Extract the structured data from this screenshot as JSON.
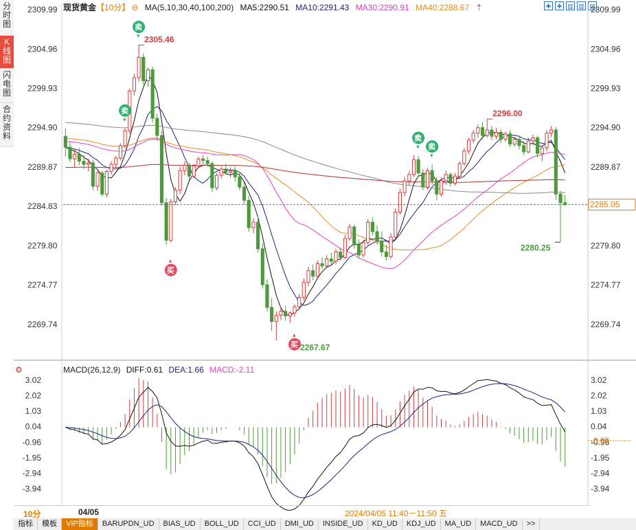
{
  "side_tabs": [
    {
      "label": "分时图",
      "active": false
    },
    {
      "label": "K线图",
      "active": true
    },
    {
      "label": "闪电图",
      "active": false
    },
    {
      "label": "合约资料",
      "active": false
    }
  ],
  "header": {
    "instrument": "现货黄金",
    "period_tag": "【10分】",
    "ma_label": "MA(5,10,30,40,100,200)",
    "ma5": "MA5:2290.51",
    "ma10": "MA10:2291.43",
    "ma30": "MA30:2290.91",
    "ma40": "MA40:2288.67"
  },
  "tool_icons": [
    "zoom-in-icon",
    "zoom-out-icon",
    "pan-left-icon",
    "pan-right-icon",
    "fullscreen-icon"
  ],
  "colors": {
    "up": "#d23c3c",
    "down": "#4c9a3c",
    "ma5": "#111111",
    "ma10": "#1a237e",
    "ma30": "#e040c0",
    "ma40": "#e88a1a",
    "ma100": "#888888",
    "ma200": "#b03030",
    "accent": "#e07b00",
    "last_price": "#e07b00",
    "buy": "#e84a5f",
    "sell": "#2fae70"
  },
  "chart_data": [
    {
      "type": "candlestick",
      "title": "现货黄金 10分",
      "y_ticks": [
        2309.99,
        2304.96,
        2299.93,
        2294.9,
        2289.87,
        2284.83,
        2279.8,
        2274.77,
        2269.74
      ],
      "ylim": [
        2265.5,
        2310.7
      ],
      "last_price": 2285.05,
      "last_price_label": "2285.05",
      "high_annotation": {
        "value": 2305.46,
        "label": "2305.46",
        "index": 16
      },
      "high2_annotation": {
        "value": 2296.0,
        "label": "2296.00",
        "index": 92
      },
      "low_annotation": {
        "value": 2267.67,
        "label": "2267.67",
        "index": 50
      },
      "low2_annotation": {
        "value": 2280.25,
        "label": "2280.25",
        "index": 108
      },
      "signals": [
        {
          "type": "sell",
          "label": "卖",
          "index": 16
        },
        {
          "type": "sell",
          "label": "卖",
          "index": 13
        },
        {
          "type": "buy",
          "label": "买",
          "index": 23
        },
        {
          "type": "buy",
          "label": "买",
          "index": 50
        },
        {
          "type": "sell",
          "label": "卖",
          "index": 80
        },
        {
          "type": "sell",
          "label": "卖",
          "index": 77
        }
      ],
      "candles": [
        [
          2293.8,
          2294.8,
          2291.2,
          2292.4
        ],
        [
          2292.4,
          2293.2,
          2290.5,
          2290.9
        ],
        [
          2290.9,
          2292.1,
          2289.8,
          2291.5
        ],
        [
          2291.5,
          2292.3,
          2290.1,
          2290.6
        ],
        [
          2290.6,
          2291.4,
          2289.6,
          2290.2
        ],
        [
          2290.2,
          2290.9,
          2289.3,
          2290.4
        ],
        [
          2290.4,
          2290.8,
          2286.9,
          2287.4
        ],
        [
          2287.4,
          2289.6,
          2286.8,
          2289.1
        ],
        [
          2289.1,
          2289.4,
          2286.1,
          2286.4
        ],
        [
          2286.4,
          2289.5,
          2286.0,
          2289.3
        ],
        [
          2289.3,
          2290.6,
          2288.9,
          2290.2
        ],
        [
          2290.2,
          2291.3,
          2289.8,
          2291.0
        ],
        [
          2291.0,
          2292.9,
          2290.7,
          2292.6
        ],
        [
          2292.6,
          2294.8,
          2292.2,
          2294.5
        ],
        [
          2294.5,
          2299.9,
          2294.1,
          2299.6
        ],
        [
          2299.6,
          2301.8,
          2299.0,
          2301.3
        ],
        [
          2301.3,
          2305.5,
          2300.8,
          2303.9
        ],
        [
          2303.9,
          2304.4,
          2300.4,
          2300.9
        ],
        [
          2300.9,
          2302.6,
          2300.1,
          2302.3
        ],
        [
          2302.3,
          2302.7,
          2295.6,
          2296.1
        ],
        [
          2296.1,
          2296.7,
          2293.2,
          2293.9
        ],
        [
          2293.9,
          2294.5,
          2284.9,
          2285.3
        ],
        [
          2285.3,
          2285.9,
          2279.9,
          2280.5
        ],
        [
          2280.5,
          2285.8,
          2280.2,
          2285.4
        ],
        [
          2285.4,
          2287.3,
          2285.0,
          2286.9
        ],
        [
          2286.9,
          2289.9,
          2286.4,
          2289.4
        ],
        [
          2289.4,
          2290.6,
          2288.8,
          2290.1
        ],
        [
          2290.1,
          2290.4,
          2288.2,
          2288.7
        ],
        [
          2288.7,
          2290.3,
          2288.4,
          2290.0
        ],
        [
          2290.0,
          2291.2,
          2289.7,
          2290.9
        ],
        [
          2290.9,
          2291.4,
          2290.2,
          2290.7
        ],
        [
          2290.7,
          2291.2,
          2289.9,
          2290.3
        ],
        [
          2290.3,
          2290.6,
          2286.7,
          2287.2
        ],
        [
          2287.2,
          2289.1,
          2286.9,
          2288.8
        ],
        [
          2288.8,
          2289.9,
          2288.4,
          2289.6
        ],
        [
          2289.6,
          2290.3,
          2288.9,
          2289.2
        ],
        [
          2289.2,
          2289.8,
          2288.5,
          2289.4
        ],
        [
          2289.4,
          2289.9,
          2288.0,
          2288.6
        ],
        [
          2288.6,
          2289.2,
          2286.9,
          2287.3
        ],
        [
          2287.3,
          2287.9,
          2285.1,
          2285.6
        ],
        [
          2285.6,
          2286.2,
          2281.6,
          2282.1
        ],
        [
          2282.1,
          2283.3,
          2281.4,
          2282.8
        ],
        [
          2282.8,
          2283.6,
          2278.9,
          2279.4
        ],
        [
          2279.4,
          2280.1,
          2274.3,
          2274.8
        ],
        [
          2274.8,
          2275.5,
          2271.4,
          2271.9
        ],
        [
          2271.9,
          2273.1,
          2268.9,
          2270.1
        ],
        [
          2270.1,
          2271.4,
          2267.7,
          2270.9
        ],
        [
          2270.9,
          2271.8,
          2270.3,
          2271.4
        ],
        [
          2271.4,
          2272.1,
          2270.2,
          2270.8
        ],
        [
          2270.8,
          2271.4,
          2269.9,
          2271.2
        ],
        [
          2271.2,
          2272.3,
          2270.7,
          2272.0
        ],
        [
          2272.0,
          2273.6,
          2271.6,
          2273.2
        ],
        [
          2273.2,
          2275.6,
          2272.8,
          2275.1
        ],
        [
          2275.1,
          2277.1,
          2274.6,
          2276.6
        ],
        [
          2276.6,
          2277.4,
          2275.4,
          2275.9
        ],
        [
          2275.9,
          2277.9,
          2275.6,
          2277.5
        ],
        [
          2277.5,
          2278.3,
          2276.8,
          2277.2
        ],
        [
          2277.2,
          2278.6,
          2276.9,
          2278.1
        ],
        [
          2278.1,
          2278.9,
          2277.4,
          2277.8
        ],
        [
          2277.8,
          2279.4,
          2277.4,
          2279.0
        ],
        [
          2279.0,
          2279.6,
          2277.9,
          2278.3
        ],
        [
          2278.3,
          2281.2,
          2278.1,
          2280.7
        ],
        [
          2280.7,
          2282.6,
          2280.4,
          2282.2
        ],
        [
          2282.2,
          2282.5,
          2279.4,
          2279.9
        ],
        [
          2279.9,
          2280.6,
          2278.1,
          2278.6
        ],
        [
          2278.6,
          2280.6,
          2278.3,
          2280.2
        ],
        [
          2280.2,
          2283.2,
          2279.9,
          2282.8
        ],
        [
          2282.8,
          2283.4,
          2281.1,
          2281.6
        ],
        [
          2281.6,
          2282.4,
          2279.9,
          2280.4
        ],
        [
          2280.4,
          2281.6,
          2278.4,
          2279.0
        ],
        [
          2279.0,
          2279.9,
          2277.9,
          2278.4
        ],
        [
          2278.4,
          2281.4,
          2278.1,
          2280.9
        ],
        [
          2280.9,
          2284.6,
          2280.6,
          2284.1
        ],
        [
          2284.1,
          2287.1,
          2283.8,
          2286.6
        ],
        [
          2286.6,
          2288.6,
          2286.1,
          2288.1
        ],
        [
          2288.1,
          2289.3,
          2287.5,
          2288.9
        ],
        [
          2288.9,
          2291.4,
          2288.6,
          2290.8
        ],
        [
          2290.8,
          2291.3,
          2288.6,
          2289.1
        ],
        [
          2289.1,
          2289.6,
          2286.9,
          2287.3
        ],
        [
          2287.3,
          2289.7,
          2287.0,
          2289.4
        ],
        [
          2289.4,
          2290.2,
          2287.6,
          2288.1
        ],
        [
          2288.1,
          2288.6,
          2285.6,
          2286.4
        ],
        [
          2286.4,
          2288.5,
          2286.1,
          2288.1
        ],
        [
          2288.1,
          2289.4,
          2287.6,
          2288.9
        ],
        [
          2288.9,
          2289.2,
          2287.4,
          2287.8
        ],
        [
          2287.8,
          2289.1,
          2287.5,
          2288.7
        ],
        [
          2288.7,
          2290.6,
          2288.4,
          2290.3
        ],
        [
          2290.3,
          2292.3,
          2290.0,
          2291.9
        ],
        [
          2291.9,
          2293.6,
          2291.5,
          2293.3
        ],
        [
          2293.3,
          2294.6,
          2292.9,
          2294.2
        ],
        [
          2294.2,
          2295.3,
          2293.6,
          2294.9
        ],
        [
          2294.9,
          2295.6,
          2293.4,
          2293.9
        ],
        [
          2293.9,
          2296.0,
          2293.6,
          2294.6
        ],
        [
          2294.6,
          2295.1,
          2293.3,
          2293.8
        ],
        [
          2293.8,
          2294.9,
          2293.4,
          2294.3
        ],
        [
          2294.3,
          2294.7,
          2292.9,
          2293.4
        ],
        [
          2293.4,
          2294.4,
          2293.1,
          2294.1
        ],
        [
          2294.1,
          2294.6,
          2292.4,
          2292.8
        ],
        [
          2292.8,
          2293.7,
          2292.5,
          2293.4
        ],
        [
          2293.4,
          2293.9,
          2292.1,
          2292.6
        ],
        [
          2292.6,
          2293.2,
          2291.4,
          2291.8
        ],
        [
          2291.8,
          2293.6,
          2291.6,
          2293.2
        ],
        [
          2293.2,
          2294.0,
          2292.6,
          2293.6
        ],
        [
          2293.6,
          2293.9,
          2291.1,
          2291.6
        ],
        [
          2291.6,
          2292.6,
          2290.6,
          2292.3
        ],
        [
          2292.3,
          2294.6,
          2291.9,
          2294.2
        ],
        [
          2294.2,
          2295.1,
          2293.7,
          2294.6
        ],
        [
          2294.6,
          2295.0,
          2285.6,
          2286.4
        ],
        [
          2286.4,
          2286.8,
          2280.3,
          2285.3
        ],
        [
          2285.3,
          2286.3,
          2284.9,
          2285.05
        ]
      ],
      "ma_series": [
        {
          "name": "MA5",
          "period": 5
        },
        {
          "name": "MA10",
          "period": 10
        },
        {
          "name": "MA30",
          "period": 30
        },
        {
          "name": "MA40",
          "period": 40
        },
        {
          "name": "MA100",
          "period": 100
        },
        {
          "name": "MA200",
          "period": 200
        }
      ]
    },
    {
      "type": "macd",
      "title": "MACD(26,12,9)",
      "params": "MACD(26,12,9)",
      "diff_label": "DIFF:0.61",
      "dea_label": "DEA:1.66",
      "macd_label": "MACD:-2.11",
      "y_ticks": [
        3.02,
        2.02,
        1.03,
        0.04,
        -0.96,
        -1.95,
        -2.94,
        -3.94
      ],
      "ylim": [
        -4.6,
        3.5
      ],
      "current_label": "-0.85"
    }
  ],
  "bottom": {
    "period": "10分",
    "date": "04/05",
    "range": "2024/04/05 11:40－11:50 五"
  },
  "tabs": [
    {
      "label": "指标",
      "active": false
    },
    {
      "label": "模板",
      "active": false
    },
    {
      "label": "VIP指标",
      "active": true
    },
    {
      "label": "BARUPDN_UD",
      "active": false
    },
    {
      "label": "BIAS_UD",
      "active": false
    },
    {
      "label": "BOLL_UD",
      "active": false
    },
    {
      "label": "CCI_UD",
      "active": false
    },
    {
      "label": "DMI_UD",
      "active": false
    },
    {
      "label": "INSIDE_UD",
      "active": false
    },
    {
      "label": "KD_UD",
      "active": false
    },
    {
      "label": "KDJ_UD",
      "active": false
    },
    {
      "label": "MA_UD",
      "active": false
    },
    {
      "label": "MACD_UD",
      "active": false
    },
    {
      "label": ">>",
      "active": false
    }
  ]
}
